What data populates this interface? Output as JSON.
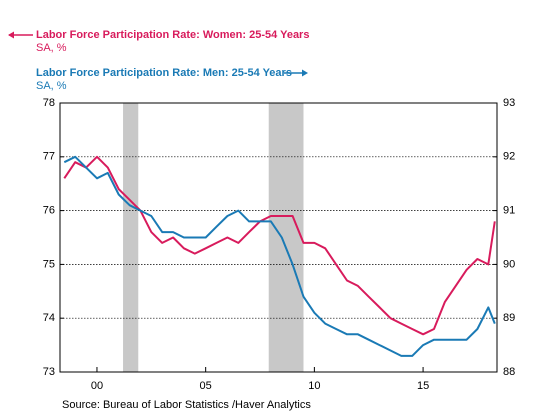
{
  "chart_data": {
    "type": "line",
    "source": "Source:  Bureau of Labor Statistics /Haver Analytics",
    "xlim": [
      1998.3,
      2018.4
    ],
    "xticks": [
      {
        "value": 2000,
        "label": "00"
      },
      {
        "value": 2005,
        "label": "05"
      },
      {
        "value": 2010,
        "label": "10"
      },
      {
        "value": 2015,
        "label": "15"
      }
    ],
    "ylim": [
      73,
      78
    ],
    "yticks": [
      73,
      74,
      75,
      76,
      77,
      78
    ],
    "y2lim": [
      88,
      93
    ],
    "y2ticks": [
      88,
      89,
      90,
      91,
      92,
      93
    ],
    "grid": true,
    "recessions": [
      [
        2001.2,
        2001.9
      ],
      [
        2007.9,
        2009.5
      ]
    ],
    "recession_color": "#c8c8c8",
    "series": [
      {
        "name": "Labor Force Participation Rate: Women: 25-54 Years",
        "units": "SA, %",
        "color": "#d81b5c",
        "axis": "y",
        "x": [
          1998.5,
          1999.0,
          1999.5,
          2000.0,
          2000.5,
          2001.0,
          2001.5,
          2002.0,
          2002.5,
          2003.0,
          2003.5,
          2004.0,
          2004.5,
          2005.0,
          2005.5,
          2006.0,
          2006.5,
          2007.0,
          2007.5,
          2008.0,
          2008.5,
          2009.0,
          2009.5,
          2010.0,
          2010.5,
          2011.0,
          2011.5,
          2012.0,
          2012.5,
          2013.0,
          2013.5,
          2014.0,
          2014.5,
          2015.0,
          2015.5,
          2016.0,
          2016.5,
          2017.0,
          2017.5,
          2018.0,
          2018.3
        ],
        "values": [
          76.6,
          76.9,
          76.8,
          77.0,
          76.8,
          76.4,
          76.2,
          76.0,
          75.6,
          75.4,
          75.5,
          75.3,
          75.2,
          75.3,
          75.4,
          75.5,
          75.4,
          75.6,
          75.8,
          75.9,
          75.9,
          75.9,
          75.4,
          75.4,
          75.3,
          75.0,
          74.7,
          74.6,
          74.4,
          74.2,
          74.0,
          73.9,
          73.8,
          73.7,
          73.8,
          74.3,
          74.6,
          74.9,
          75.1,
          75.0,
          75.8
        ]
      },
      {
        "name": "Labor Force Participation Rate: Men: 25-54 Years",
        "units": "SA, %",
        "color": "#1a7ab5",
        "axis": "y2",
        "x": [
          1998.5,
          1999.0,
          1999.5,
          2000.0,
          2000.5,
          2001.0,
          2001.5,
          2002.0,
          2002.5,
          2003.0,
          2003.5,
          2004.0,
          2004.5,
          2005.0,
          2005.5,
          2006.0,
          2006.5,
          2007.0,
          2007.5,
          2008.0,
          2008.5,
          2009.0,
          2009.5,
          2010.0,
          2010.5,
          2011.0,
          2011.5,
          2012.0,
          2012.5,
          2013.0,
          2013.5,
          2014.0,
          2014.5,
          2015.0,
          2015.5,
          2016.0,
          2016.5,
          2017.0,
          2017.5,
          2018.0,
          2018.3
        ],
        "values": [
          91.9,
          92.0,
          91.8,
          91.6,
          91.7,
          91.3,
          91.1,
          91.0,
          90.9,
          90.6,
          90.6,
          90.5,
          90.5,
          90.5,
          90.7,
          90.9,
          91.0,
          90.8,
          90.8,
          90.8,
          90.5,
          90.0,
          89.4,
          89.1,
          88.9,
          88.8,
          88.7,
          88.7,
          88.6,
          88.5,
          88.4,
          88.3,
          88.3,
          88.5,
          88.6,
          88.6,
          88.6,
          88.6,
          88.8,
          89.2,
          88.9
        ]
      }
    ]
  }
}
